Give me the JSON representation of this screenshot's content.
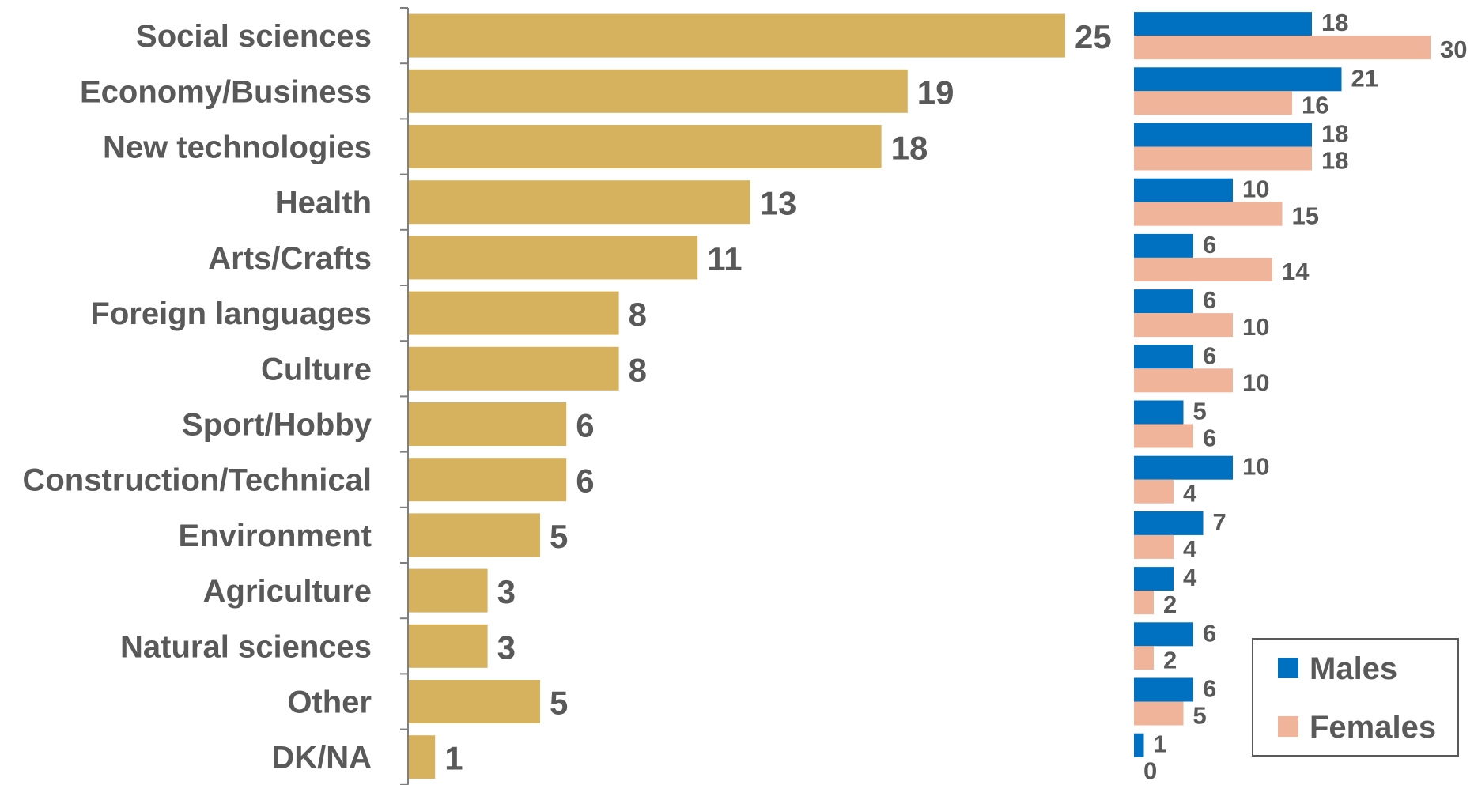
{
  "chart_data": [
    {
      "type": "bar",
      "orientation": "horizontal",
      "categories": [
        "Social sciences",
        "Economy/Business",
        "New technologies",
        "Health",
        "Arts/Crafts",
        "Foreign languages",
        "Culture",
        "Sport/Hobby",
        "Construction/Technical",
        "Environment",
        "Agriculture",
        "Natural sciences",
        "Other",
        "DK/NA"
      ],
      "values": [
        25,
        19,
        18,
        13,
        11,
        8,
        8,
        6,
        6,
        5,
        3,
        3,
        5,
        1
      ],
      "color": "#D6B25E",
      "data_labels": true,
      "xlim": [
        0,
        25
      ]
    },
    {
      "type": "bar",
      "orientation": "horizontal",
      "categories": [
        "Social sciences",
        "Economy/Business",
        "New technologies",
        "Health",
        "Arts/Crafts",
        "Foreign languages",
        "Culture",
        "Sport/Hobby",
        "Construction/Technical",
        "Environment",
        "Agriculture",
        "Natural sciences",
        "Other",
        "DK/NA"
      ],
      "series": [
        {
          "name": "Males",
          "color": "#0070C0",
          "values": [
            18,
            21,
            18,
            10,
            6,
            6,
            6,
            5,
            10,
            7,
            4,
            6,
            6,
            1
          ]
        },
        {
          "name": "Females",
          "color": "#F0B49A",
          "values": [
            30,
            16,
            18,
            15,
            14,
            10,
            10,
            6,
            4,
            4,
            2,
            2,
            5,
            0
          ]
        }
      ],
      "data_labels": true,
      "legend": {
        "position": "bottom-right",
        "entries": [
          "Males",
          "Females"
        ]
      }
    }
  ],
  "colors": {
    "label_text": "#595959",
    "axis": "#7F7F7F",
    "legend_border": "#595959"
  }
}
